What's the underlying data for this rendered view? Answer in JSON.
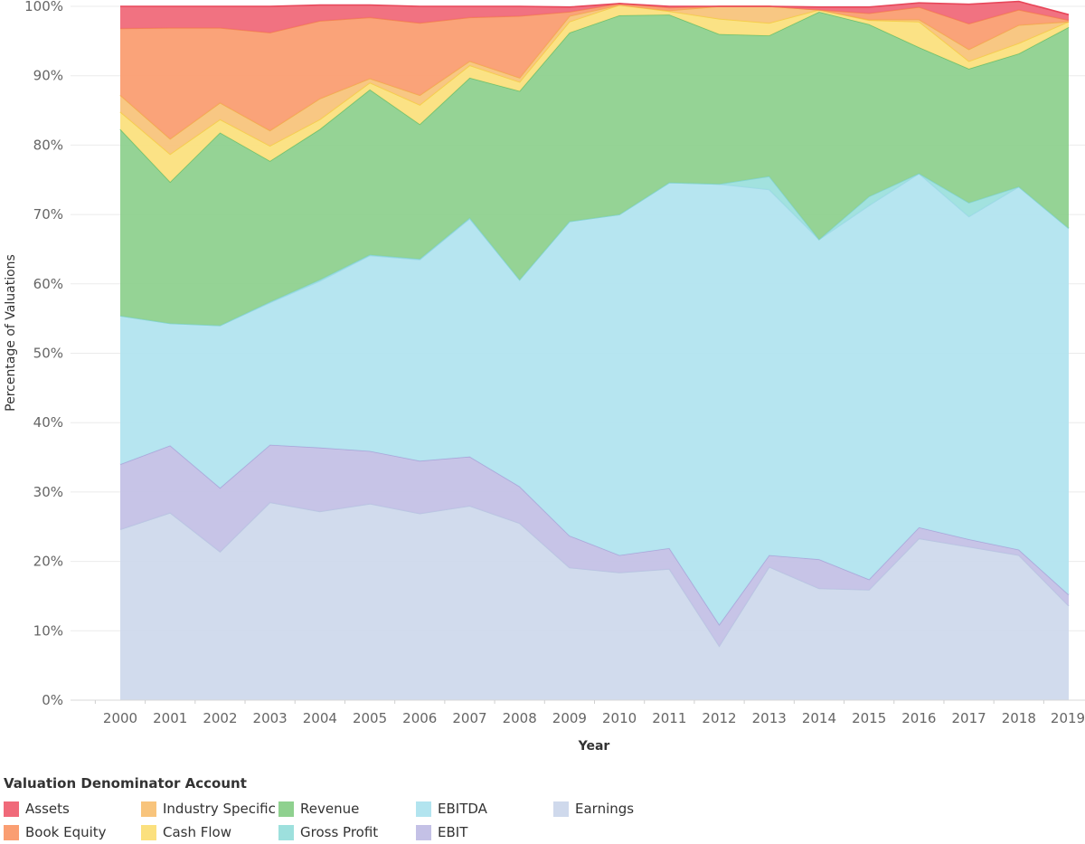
{
  "chart_data": {
    "type": "area",
    "stacked": true,
    "normalized": true,
    "title": "",
    "xlabel": "Year",
    "ylabel": "Percentage of Valuations",
    "ylim": [
      0,
      100
    ],
    "y_ticks": [
      "0%",
      "10%",
      "20%",
      "30%",
      "40%",
      "50%",
      "60%",
      "70%",
      "80%",
      "90%",
      "100%"
    ],
    "grid": "horizontal",
    "legend_title": "Valuation Denominator Account",
    "legend_position": "bottom-left",
    "x": [
      "2000",
      "2001",
      "2002",
      "2003",
      "2004",
      "2005",
      "2006",
      "2007",
      "2008",
      "2009",
      "2010",
      "2011",
      "2012",
      "2013",
      "2014",
      "2015",
      "2016",
      "2017",
      "2018",
      "2019"
    ],
    "series": [
      {
        "name": "Earnings",
        "color": "#CFD9EC",
        "line": "#B9C6E2",
        "values": [
          24.6,
          27.0,
          21.4,
          28.5,
          27.2,
          28.3,
          26.9,
          28.0,
          25.5,
          19.1,
          18.4,
          18.9,
          7.8,
          19.2,
          16.1,
          15.9,
          23.3,
          22.1,
          20.9,
          13.6
        ]
      },
      {
        "name": "EBIT",
        "color": "#C4C1E6",
        "line": "#ABA7DA",
        "values": [
          9.4,
          9.7,
          9.2,
          8.3,
          9.2,
          7.6,
          7.6,
          7.1,
          5.3,
          4.6,
          2.5,
          3.0,
          3.1,
          1.7,
          4.2,
          1.5,
          1.6,
          1.1,
          0.8,
          1.6
        ]
      },
      {
        "name": "EBITDA",
        "color": "#B2E4EF",
        "line": "#9FD9E8",
        "values": [
          21.4,
          17.6,
          23.4,
          20.5,
          24.0,
          28.2,
          29.0,
          34.3,
          29.8,
          45.3,
          49.1,
          52.7,
          63.5,
          52.7,
          46.1,
          53.9,
          51.0,
          46.5,
          52.3,
          52.8
        ]
      },
      {
        "name": "Gross Profit",
        "color": "#9DE0DD",
        "line": "#84D4D0",
        "values": [
          0.0,
          0.0,
          0.0,
          0.1,
          0.2,
          0.1,
          0.1,
          0.1,
          0.0,
          0.0,
          0.0,
          0.0,
          0.0,
          1.9,
          0.0,
          1.3,
          0.0,
          2.0,
          0.0,
          0.0
        ]
      },
      {
        "name": "Revenue",
        "color": "#8FD18F",
        "line": "#6EC06E",
        "values": [
          26.9,
          20.4,
          27.8,
          20.3,
          21.7,
          23.8,
          19.4,
          20.2,
          27.2,
          27.2,
          28.7,
          24.2,
          21.6,
          20.3,
          32.8,
          24.8,
          18.2,
          19.3,
          19.2,
          29.0
        ]
      },
      {
        "name": "Cash Flow",
        "color": "#FBE07E",
        "line": "#F5CF4A",
        "values": [
          2.5,
          4.0,
          1.9,
          2.2,
          1.4,
          1.0,
          2.8,
          1.8,
          1.3,
          1.6,
          1.5,
          0.5,
          2.2,
          1.8,
          0.3,
          0.6,
          3.7,
          1.1,
          1.5,
          0.8
        ]
      },
      {
        "name": "Industry Specific",
        "color": "#F8C47C",
        "line": "#F2AE4F",
        "values": [
          2.4,
          2.2,
          2.4,
          2.2,
          3.0,
          0.6,
          1.4,
          0.6,
          0.6,
          0.8,
          0.0,
          0.1,
          1.8,
          2.4,
          0.0,
          0.1,
          0.3,
          1.7,
          2.6,
          0.0
        ]
      },
      {
        "name": "Book Equity",
        "color": "#FA9E72",
        "line": "#F48553",
        "values": [
          9.6,
          16.0,
          10.8,
          14.1,
          11.2,
          8.8,
          10.4,
          6.3,
          8.9,
          0.6,
          0.2,
          0.4,
          0.0,
          0.0,
          0.0,
          0.9,
          1.8,
          3.7,
          2.2,
          0.2
        ]
      },
      {
        "name": "Assets",
        "color": "#F06A7A",
        "line": "#E8475A",
        "values": [
          3.2,
          3.1,
          3.1,
          3.8,
          2.3,
          1.8,
          2.4,
          1.6,
          1.4,
          0.7,
          0.0,
          0.2,
          0.0,
          0.0,
          0.4,
          0.9,
          0.6,
          2.8,
          1.2,
          0.8
        ]
      }
    ],
    "legend_order": [
      "Assets",
      "Book Equity",
      "Industry Specific",
      "Cash Flow",
      "Revenue",
      "Gross Profit",
      "EBITDA",
      "EBIT",
      "Earnings"
    ]
  }
}
